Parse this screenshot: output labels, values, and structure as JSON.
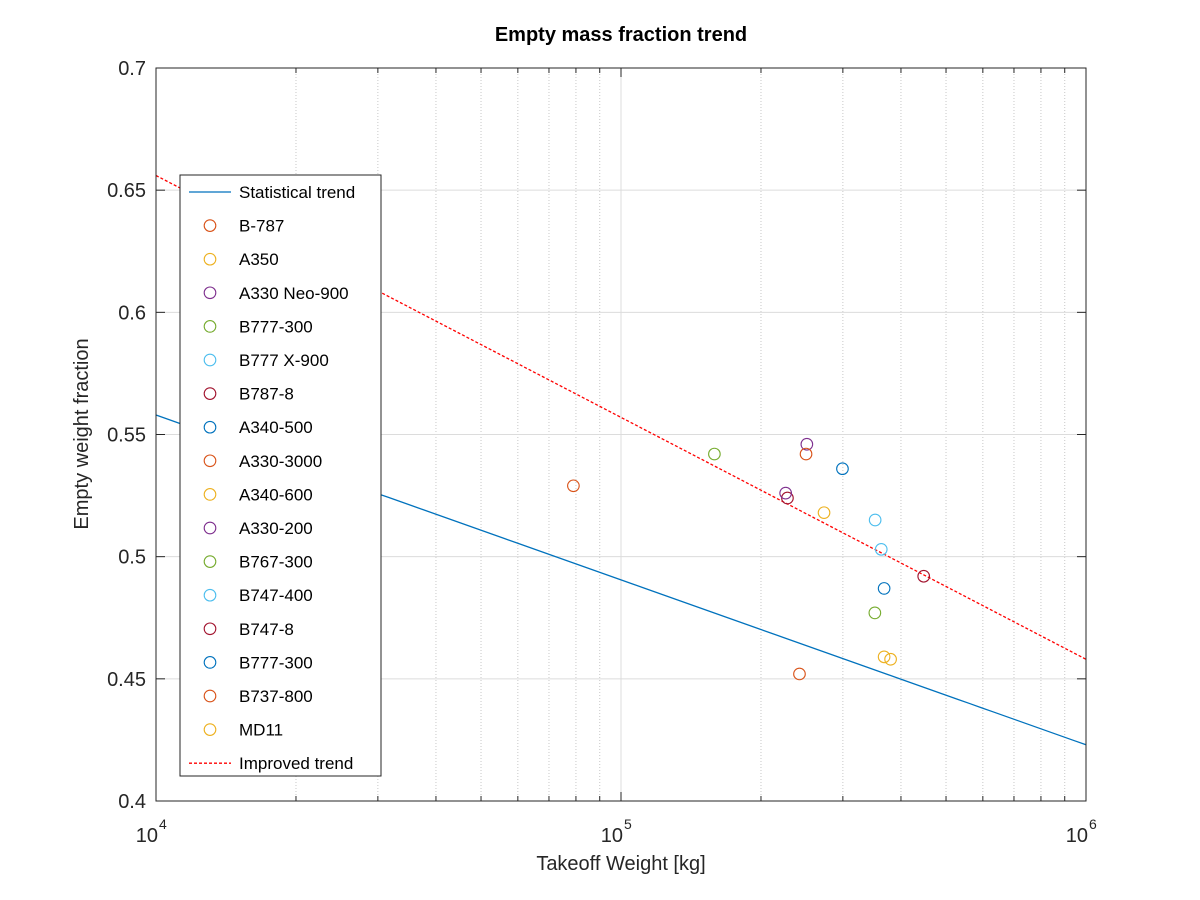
{
  "chart_data": {
    "type": "scatter",
    "title": "Empty mass fraction trend",
    "xlabel": "Takeoff Weight [kg]",
    "ylabel": "Empty weight fraction",
    "xscale": "log",
    "xlim": [
      10000,
      1000000
    ],
    "ylim": [
      0.4,
      0.7
    ],
    "x_ticks": [
      {
        "value": 10000,
        "base": "10",
        "exp": "4"
      },
      {
        "value": 100000,
        "base": "10",
        "exp": "5"
      },
      {
        "value": 1000000,
        "base": "10",
        "exp": "6"
      }
    ],
    "y_ticks": [
      {
        "value": 0.4,
        "label": "0.4"
      },
      {
        "value": 0.45,
        "label": "0.45"
      },
      {
        "value": 0.5,
        "label": "0.5"
      },
      {
        "value": 0.55,
        "label": "0.55"
      },
      {
        "value": 0.6,
        "label": "0.6"
      },
      {
        "value": 0.65,
        "label": "0.65"
      },
      {
        "value": 0.7,
        "label": "0.7"
      }
    ],
    "grid": true,
    "legend_position": "left",
    "lines": [
      {
        "name": "Statistical trend",
        "color": "#0072bd",
        "style": "solid",
        "x": [
          10000,
          1000000
        ],
        "y": [
          0.558,
          0.423
        ]
      },
      {
        "name": "Improved trend",
        "color": "#ff0000",
        "style": "dashed",
        "x": [
          10000,
          1000000
        ],
        "y": [
          0.656,
          0.458
        ]
      }
    ],
    "points": [
      {
        "name": "B-787",
        "x": 242000,
        "y": 0.452,
        "color": "#d95319"
      },
      {
        "name": "A350",
        "x": 380000,
        "y": 0.458,
        "color": "#edb120"
      },
      {
        "name": "A330 Neo-900",
        "x": 251000,
        "y": 0.546,
        "color": "#7e2f8e"
      },
      {
        "name": "B777-300",
        "x": 351500,
        "y": 0.477,
        "color": "#77ac30"
      },
      {
        "name": "B777 X-900",
        "x": 352000,
        "y": 0.515,
        "color": "#4dbeee"
      },
      {
        "name": "B787-8",
        "x": 228000,
        "y": 0.524,
        "color": "#a2142f"
      },
      {
        "name": "A340-500",
        "x": 368000,
        "y": 0.487,
        "color": "#0072bd"
      },
      {
        "name": "A330-3000",
        "x": 250000,
        "y": 0.542,
        "color": "#d95319"
      },
      {
        "name": "A340-600",
        "x": 368000,
        "y": 0.459,
        "color": "#edb120"
      },
      {
        "name": "A330-200",
        "x": 226000,
        "y": 0.526,
        "color": "#7e2f8e"
      },
      {
        "name": "B767-300",
        "x": 158800,
        "y": 0.542,
        "color": "#77ac30"
      },
      {
        "name": "B747-400",
        "x": 362800,
        "y": 0.503,
        "color": "#4dbeee"
      },
      {
        "name": "B747-8",
        "x": 447700,
        "y": 0.492,
        "color": "#a2142f"
      },
      {
        "name": "B777-300",
        "x": 299400,
        "y": 0.536,
        "color": "#0072bd"
      },
      {
        "name": "B737-800",
        "x": 79000,
        "y": 0.529,
        "color": "#d95319"
      },
      {
        "name": "MD11",
        "x": 273300,
        "y": 0.518,
        "color": "#edb120"
      }
    ]
  }
}
